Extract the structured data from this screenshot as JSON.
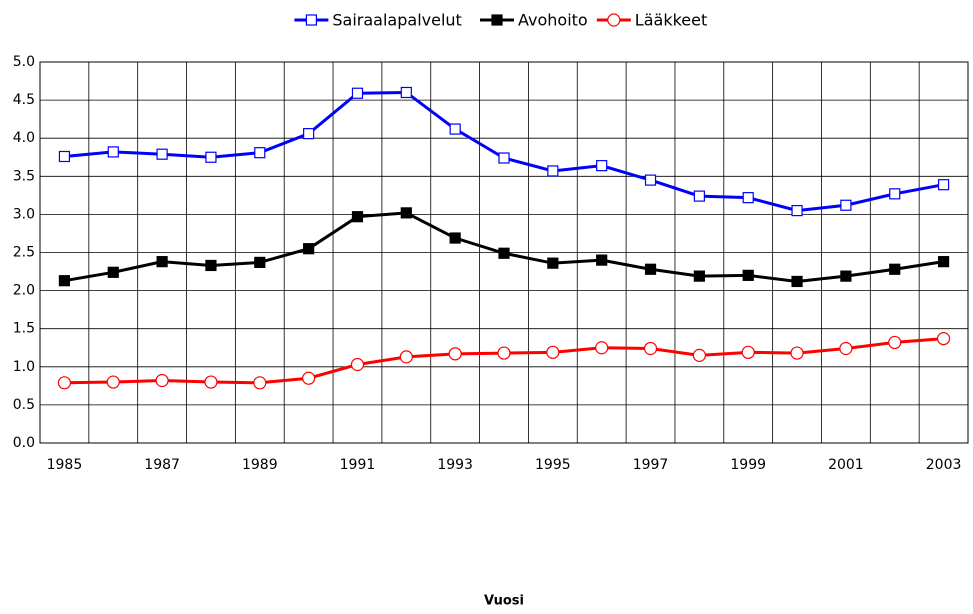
{
  "chart_data": {
    "type": "line",
    "x_label": "Vuosi",
    "categories": [
      "1985",
      null,
      "1987",
      null,
      "1989",
      null,
      "1991",
      null,
      "1993",
      null,
      "1995",
      null,
      "1997",
      null,
      "1999",
      null,
      "2001",
      null,
      "2003"
    ],
    "series": [
      {
        "name": "Sairaalapalvelut",
        "color": "#0000ff",
        "marker": "square-open",
        "values": [
          3.76,
          3.82,
          3.79,
          3.75,
          3.81,
          4.06,
          4.59,
          4.6,
          4.12,
          3.74,
          3.57,
          3.64,
          3.45,
          3.24,
          3.22,
          3.05,
          3.12,
          3.27,
          3.39
        ]
      },
      {
        "name": "Avohoito",
        "color": "#000000",
        "marker": "square-filled",
        "values": [
          2.13,
          2.24,
          2.38,
          2.33,
          2.37,
          2.55,
          2.97,
          3.02,
          2.69,
          2.49,
          2.36,
          2.4,
          2.28,
          2.19,
          2.2,
          2.12,
          2.19,
          2.28,
          2.38
        ]
      },
      {
        "name": "Lääkkeet",
        "color": "#ff0000",
        "marker": "circle-open",
        "values": [
          0.79,
          0.8,
          0.82,
          0.8,
          0.79,
          0.85,
          1.03,
          1.13,
          1.17,
          1.18,
          1.19,
          1.25,
          1.24,
          1.15,
          1.19,
          1.18,
          1.24,
          1.32,
          1.37
        ]
      }
    ],
    "ylim": [
      0,
      5
    ],
    "yticks": [
      {
        "value": 0,
        "label": "0.0"
      },
      {
        "value": 0.5,
        "label": "0.5"
      },
      {
        "value": 1,
        "label": "1.0"
      },
      {
        "value": 1.5,
        "label": "1.5"
      },
      {
        "value": 2,
        "label": "2.0"
      },
      {
        "value": 2.5,
        "label": "2.5"
      },
      {
        "value": 3,
        "label": "3.0"
      },
      {
        "value": 3.5,
        "label": "3.5"
      },
      {
        "value": 4,
        "label": "4.0"
      },
      {
        "value": 4.5,
        "label": "4.5"
      },
      {
        "value": 5,
        "label": "5.0"
      }
    ],
    "grid": true,
    "legend": "top"
  }
}
